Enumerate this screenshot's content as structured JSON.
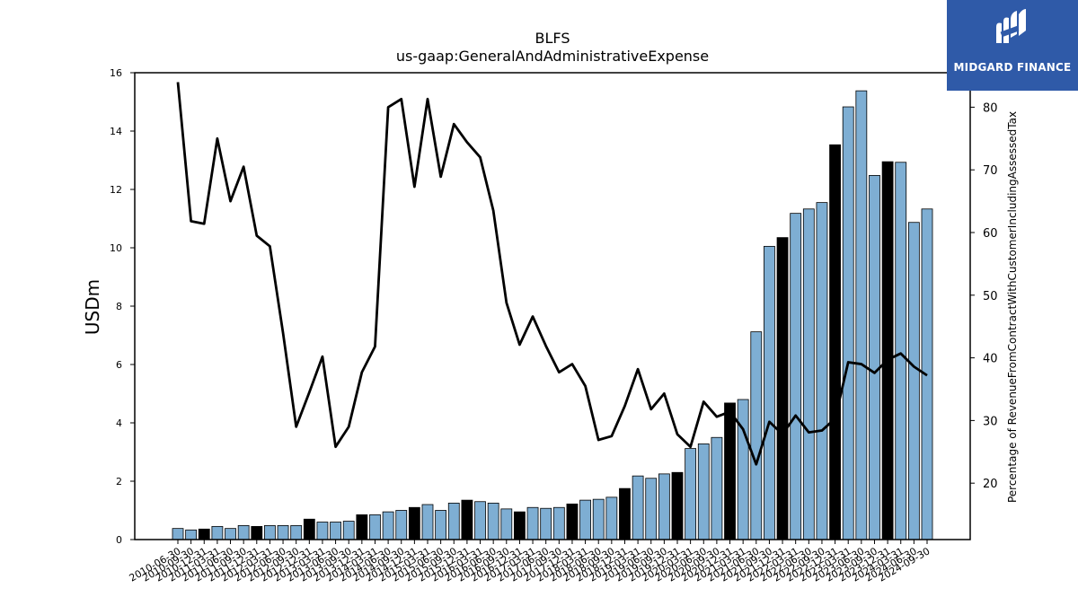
{
  "logo": {
    "text": "MIDGARD FINANCE"
  },
  "colors": {
    "bar_normal": "#7eaed3",
    "bar_highlight": "#000000",
    "line": "#000000",
    "logo_bg": "#2f5aa8"
  },
  "chart_data": {
    "type": "bar",
    "title": "BLFS",
    "subtitle": "us-gaap:GeneralAndAdministrativeExpense",
    "ylabel": "USDm",
    "y2label": "Percentage of RevenueFromContractWithCustomerIncludingAssessedTax",
    "ylim": [
      0,
      16
    ],
    "yticks": [
      0,
      2,
      4,
      6,
      8,
      10,
      12,
      14,
      16
    ],
    "y2lim": [
      11.0,
      85.5
    ],
    "y2ticks": [
      20,
      30,
      40,
      50,
      60,
      70,
      80
    ],
    "grid": false,
    "categories": [
      "2010-06-30",
      "2010-09-30",
      "2010-12-31",
      "2011-03-31",
      "2011-06-30",
      "2011-09-30",
      "2011-12-31",
      "2012-03-31",
      "2012-06-30",
      "2012-09-30",
      "2012-12-31",
      "2013-03-31",
      "2013-06-30",
      "2013-09-30",
      "2013-12-31",
      "2014-03-31",
      "2014-06-30",
      "2014-09-30",
      "2014-12-31",
      "2015-03-31",
      "2015-06-30",
      "2015-09-30",
      "2015-12-31",
      "2016-03-31",
      "2016-06-30",
      "2016-09-30",
      "2016-12-31",
      "2017-03-31",
      "2017-06-30",
      "2017-09-30",
      "2017-12-31",
      "2018-03-31",
      "2018-06-30",
      "2018-09-30",
      "2018-12-31",
      "2019-03-31",
      "2019-06-30",
      "2019-09-30",
      "2019-12-31",
      "2020-03-31",
      "2020-06-30",
      "2020-09-30",
      "2020-12-31",
      "2021-03-31",
      "2021-06-30",
      "2021-09-30",
      "2021-12-31",
      "2022-03-31",
      "2022-06-30",
      "2022-09-30",
      "2022-12-31",
      "2023-03-31",
      "2023-06-30",
      "2023-09-30",
      "2023-12-31",
      "2024-03-31",
      "2024-06-30",
      "2024-09-30"
    ],
    "series": [
      {
        "type": "bar",
        "axis": "left",
        "values": [
          0.38,
          0.33,
          0.36,
          0.45,
          0.38,
          0.48,
          0.45,
          0.48,
          0.48,
          0.48,
          0.7,
          0.6,
          0.6,
          0.63,
          0.85,
          0.85,
          0.95,
          1.0,
          1.1,
          1.2,
          1.0,
          1.25,
          1.35,
          1.3,
          1.25,
          1.05,
          0.95,
          1.1,
          1.07,
          1.1,
          1.22,
          1.35,
          1.38,
          1.45,
          1.75,
          2.18,
          2.1,
          2.25,
          2.3,
          3.12,
          3.28,
          3.5,
          4.68,
          4.8,
          7.12,
          10.05,
          10.35,
          11.18,
          11.33,
          11.55,
          13.53,
          14.83,
          15.38,
          12.48,
          12.95,
          12.93,
          10.87,
          11.33
        ],
        "highlight": [
          false,
          false,
          true,
          false,
          false,
          false,
          true,
          false,
          false,
          false,
          true,
          false,
          false,
          false,
          true,
          false,
          false,
          false,
          true,
          false,
          false,
          false,
          true,
          false,
          false,
          false,
          true,
          false,
          false,
          false,
          true,
          false,
          false,
          false,
          true,
          false,
          false,
          false,
          true,
          false,
          false,
          false,
          true,
          false,
          false,
          false,
          true,
          false,
          false,
          false,
          true,
          false,
          false,
          false,
          true,
          false,
          false,
          false
        ]
      },
      {
        "type": "line",
        "axis": "right",
        "values": [
          84.0,
          61.8,
          61.4,
          75.0,
          65.0,
          70.5,
          59.5,
          57.8,
          44.0,
          29.0,
          34.5,
          40.2,
          25.8,
          29.0,
          37.7,
          41.8,
          80.0,
          81.3,
          67.3,
          81.3,
          68.9,
          77.3,
          74.4,
          72.0,
          63.5,
          48.8,
          42.1,
          46.6,
          41.9,
          37.7,
          39.0,
          35.5,
          26.9,
          27.5,
          32.3,
          38.2,
          31.8,
          34.3,
          27.8,
          25.8,
          33.0,
          30.6,
          31.4,
          28.6,
          23.0,
          29.8,
          27.8,
          30.8,
          28.1,
          28.4,
          30.3,
          39.3,
          39.0,
          37.6,
          39.7,
          40.7,
          38.6,
          37.2
        ]
      }
    ]
  }
}
